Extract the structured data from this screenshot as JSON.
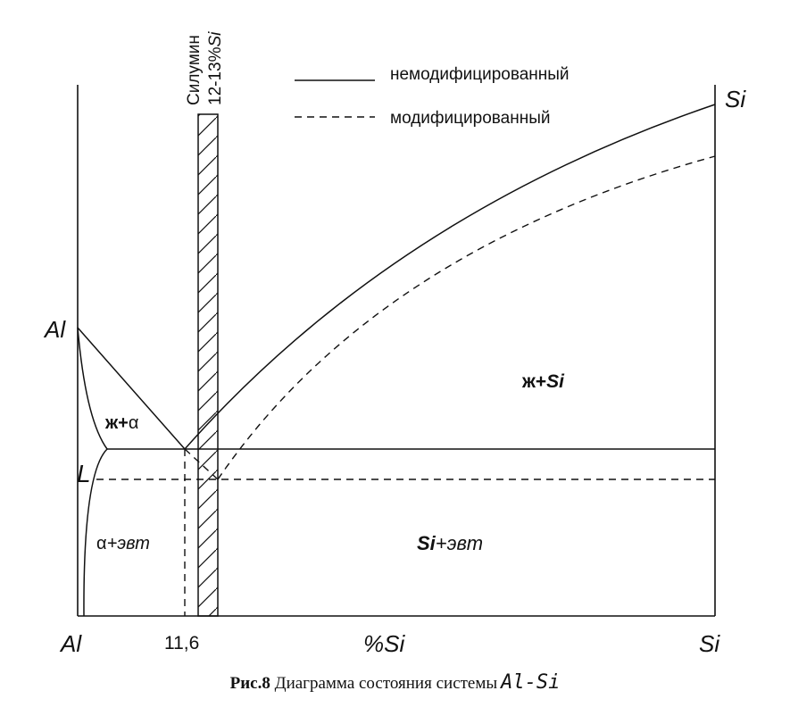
{
  "legend": {
    "solid": "немодифицированный",
    "dashed": "модифицированный"
  },
  "hatch_label": {
    "line1": "Силумин",
    "line2_prefix": "12-13%",
    "line2_suffix": "Si"
  },
  "labels": {
    "al_top": "Al",
    "si_top": "Si",
    "alpha_mark": "L",
    "liquid_alpha_a": "ж+",
    "liquid_alpha_b": "α",
    "liquid_si_a": "ж+",
    "liquid_si_b": "Si",
    "alpha_eut_a": "α",
    "alpha_eut_b": "+эвт",
    "si_eut_a": "Si",
    "si_eut_b": "+эвт"
  },
  "axis": {
    "left": "Al",
    "tick": "11,6",
    "center": "%Si",
    "right": "Si"
  },
  "caption": {
    "fig": "Рис.8",
    "text": "Диаграмма состояния системы",
    "system": "Al-Si"
  },
  "colors": {
    "line": "#111111",
    "background": "#ffffff"
  }
}
